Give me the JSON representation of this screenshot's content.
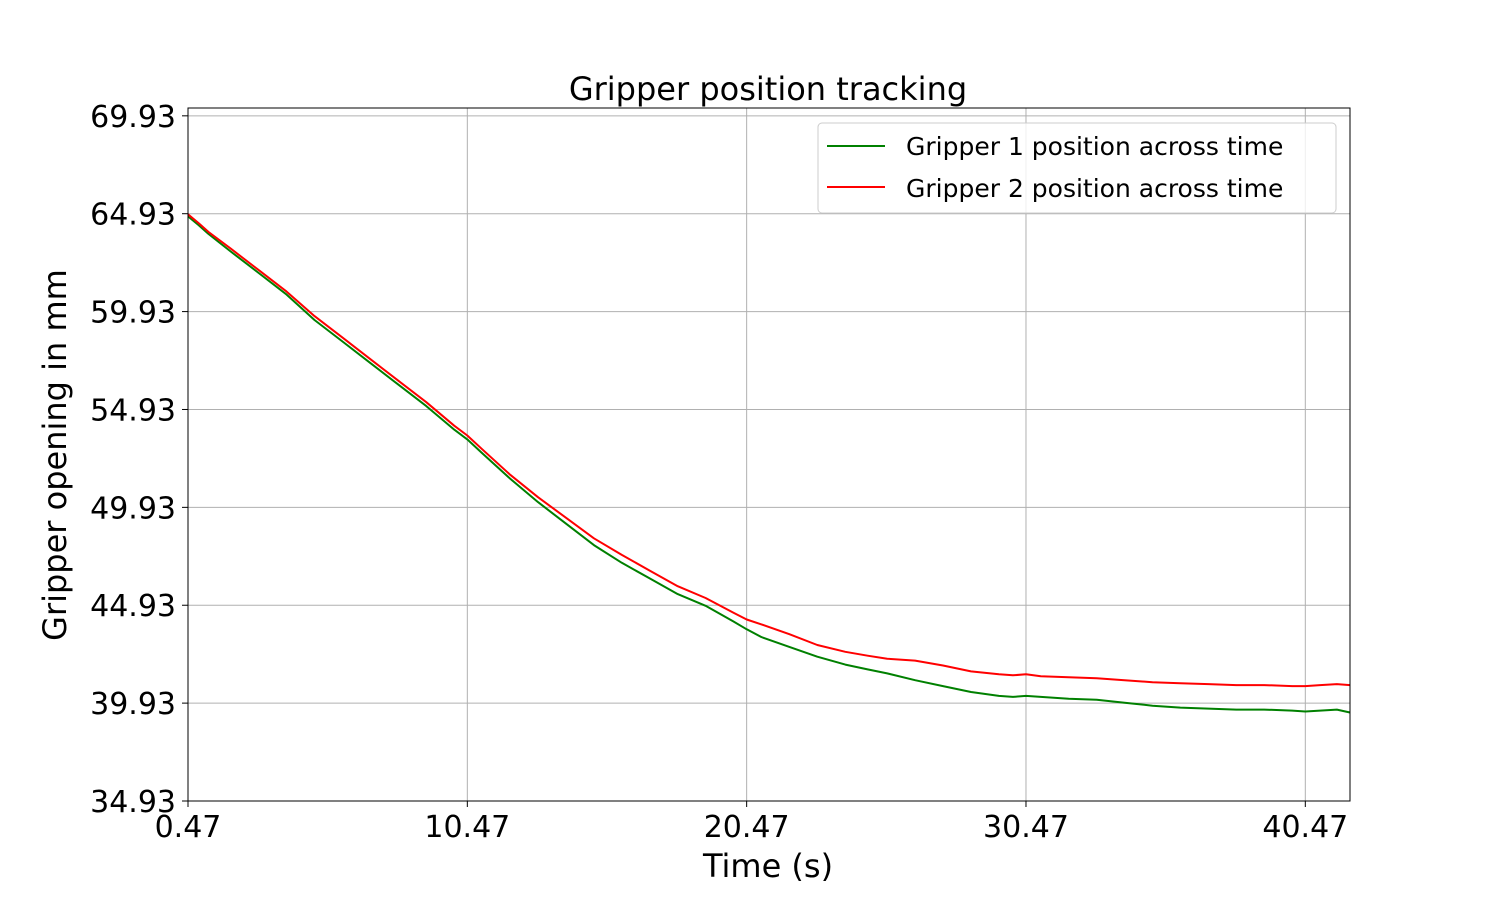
{
  "chart_data": {
    "type": "line",
    "title": "Gripper position tracking",
    "xlabel": "Time (s)",
    "ylabel": "Gripper opening in mm",
    "xlim": [
      0.47,
      42.07
    ],
    "ylim": [
      34.93,
      70.33
    ],
    "xticks": [
      "0.47",
      "10.47",
      "20.47",
      "30.47",
      "40.47"
    ],
    "yticks": [
      "34.93",
      "39.93",
      "44.93",
      "49.93",
      "54.93",
      "59.93",
      "64.93",
      "69.93"
    ],
    "grid": true,
    "legend_position": "upper right",
    "series": [
      {
        "name": "Gripper 1 position across time",
        "color": "#008000",
        "x": [
          0.47,
          0.85,
          1.2,
          2.0,
          3.0,
          4.0,
          5.0,
          6.0,
          7.0,
          8.0,
          9.0,
          10.0,
          10.47,
          11.0,
          12.0,
          13.0,
          14.0,
          15.0,
          16.0,
          17.0,
          18.0,
          19.0,
          20.0,
          20.47,
          21.0,
          22.0,
          23.0,
          24.0,
          24.8,
          25.5,
          26.5,
          27.5,
          28.5,
          29.5,
          30.0,
          30.47,
          31.0,
          32.0,
          33.0,
          34.0,
          35.0,
          36.0,
          37.0,
          38.0,
          39.0,
          40.0,
          40.47,
          41.0,
          41.6,
          42.07
        ],
        "values": [
          64.8,
          64.35,
          63.9,
          63.0,
          61.9,
          60.8,
          59.5,
          58.4,
          57.3,
          56.2,
          55.1,
          53.9,
          53.4,
          52.7,
          51.4,
          50.2,
          49.1,
          48.0,
          47.1,
          46.3,
          45.5,
          44.9,
          44.1,
          43.7,
          43.3,
          42.8,
          42.3,
          41.9,
          41.65,
          41.45,
          41.1,
          40.8,
          40.5,
          40.3,
          40.25,
          40.3,
          40.25,
          40.15,
          40.1,
          39.95,
          39.8,
          39.7,
          39.65,
          39.6,
          39.6,
          39.55,
          39.5,
          39.55,
          39.6,
          39.45
        ]
      },
      {
        "name": "Gripper 2 position across time",
        "color": "#ff0000",
        "x": [
          0.47,
          0.85,
          1.2,
          2.0,
          3.0,
          4.0,
          5.0,
          6.0,
          7.0,
          8.0,
          9.0,
          10.0,
          10.47,
          11.0,
          12.0,
          13.0,
          14.0,
          15.0,
          16.0,
          17.0,
          18.0,
          19.0,
          20.0,
          20.47,
          21.0,
          22.0,
          23.0,
          24.0,
          24.8,
          25.5,
          26.5,
          27.5,
          28.5,
          29.5,
          30.0,
          30.47,
          31.0,
          32.0,
          33.0,
          34.0,
          35.0,
          36.0,
          37.0,
          38.0,
          39.0,
          40.0,
          40.47,
          41.0,
          41.6,
          42.07
        ],
        "values": [
          64.9,
          64.45,
          64.0,
          63.15,
          62.05,
          60.95,
          59.7,
          58.6,
          57.5,
          56.4,
          55.3,
          54.1,
          53.6,
          52.9,
          51.6,
          50.45,
          49.4,
          48.35,
          47.5,
          46.7,
          45.9,
          45.3,
          44.55,
          44.2,
          43.95,
          43.45,
          42.9,
          42.55,
          42.35,
          42.2,
          42.1,
          41.85,
          41.55,
          41.4,
          41.35,
          41.4,
          41.3,
          41.25,
          41.2,
          41.1,
          41.0,
          40.95,
          40.9,
          40.85,
          40.85,
          40.8,
          40.8,
          40.85,
          40.9,
          40.85
        ]
      }
    ]
  }
}
